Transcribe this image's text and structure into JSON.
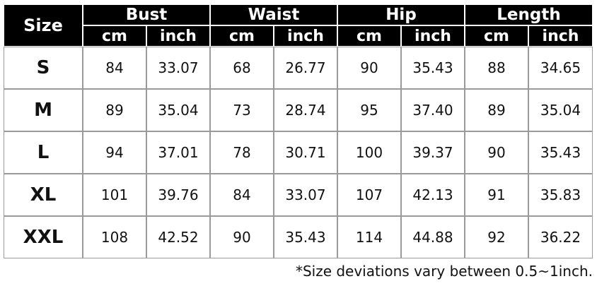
{
  "header": {
    "size": "Size",
    "groups": [
      {
        "name": "Bust",
        "units": [
          "cm",
          "inch"
        ]
      },
      {
        "name": "Waist",
        "units": [
          "cm",
          "inch"
        ]
      },
      {
        "name": "Hip",
        "units": [
          "cm",
          "inch"
        ]
      },
      {
        "name": "Length",
        "units": [
          "cm",
          "inch"
        ]
      }
    ]
  },
  "rows": [
    {
      "size": "S",
      "values": [
        "84",
        "33.07",
        "68",
        "26.77",
        "90",
        "35.43",
        "88",
        "34.65"
      ]
    },
    {
      "size": "M",
      "values": [
        "89",
        "35.04",
        "73",
        "28.74",
        "95",
        "37.40",
        "89",
        "35.04"
      ]
    },
    {
      "size": "L",
      "values": [
        "94",
        "37.01",
        "78",
        "30.71",
        "100",
        "39.37",
        "90",
        "35.43"
      ]
    },
    {
      "size": "XL",
      "values": [
        "101",
        "39.76",
        "84",
        "33.07",
        "107",
        "42.13",
        "91",
        "35.83"
      ]
    },
    {
      "size": "XXL",
      "values": [
        "108",
        "42.52",
        "90",
        "35.43",
        "114",
        "44.88",
        "92",
        "36.22"
      ]
    }
  ],
  "note": "*Size deviations vary between 0.5~1inch."
}
